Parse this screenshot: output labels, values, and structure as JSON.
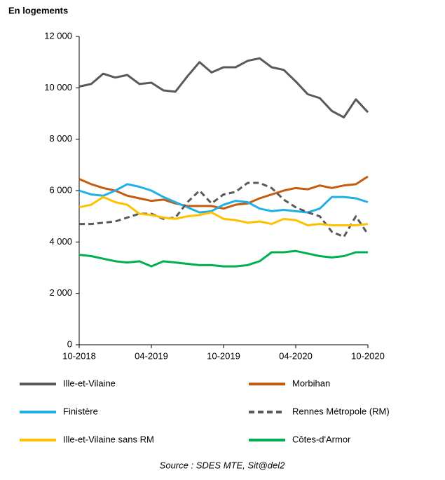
{
  "chart_data": {
    "type": "line",
    "y_label": "En logements",
    "source": "Source : SDES MTE, Sit@del2",
    "categories": [
      "10-2018",
      null,
      null,
      null,
      null,
      null,
      "04-2019",
      null,
      null,
      null,
      null,
      null,
      "10-2019",
      null,
      null,
      null,
      null,
      null,
      "04-2020",
      null,
      null,
      null,
      null,
      null,
      "10-2020"
    ],
    "ylim": [
      0,
      12000
    ],
    "yticks": [
      0,
      {
        "value": 2000,
        "label": "2 000"
      },
      {
        "value": 4000,
        "label": "4 000"
      },
      {
        "value": 6000,
        "label": "6 000"
      },
      {
        "value": 8000,
        "label": "8 000"
      },
      {
        "value": 10000,
        "label": "10 000"
      },
      {
        "value": 12000,
        "label": "12 000"
      }
    ],
    "series": [
      {
        "name": "Ille-et-Vilaine",
        "color": "#595959",
        "values": [
          10050,
          10150,
          10550,
          10400,
          10500,
          10150,
          10200,
          9900,
          9850,
          10450,
          11000,
          10600,
          10800,
          10800,
          11050,
          11150,
          10800,
          10700,
          10250,
          9750,
          9600,
          9100,
          8850,
          9550,
          9050
        ]
      },
      {
        "name": "Morbihan",
        "color": "#c55a11",
        "values": [
          6450,
          6250,
          6100,
          6000,
          5800,
          5700,
          5600,
          5650,
          5500,
          5400,
          5400,
          5400,
          5300,
          5450,
          5500,
          5700,
          5850,
          6000,
          6100,
          6050,
          6200,
          6100,
          6200,
          6250,
          6550
        ]
      },
      {
        "name": "Finistère",
        "color": "#1fb0e8",
        "values": [
          6000,
          5850,
          5800,
          6000,
          6250,
          6150,
          6000,
          5750,
          5550,
          5350,
          5150,
          5200,
          5450,
          5600,
          5550,
          5300,
          5200,
          5250,
          5200,
          5150,
          5300,
          5750,
          5750,
          5700,
          5550
        ]
      },
      {
        "name": "Rennes Métropole (RM)",
        "color": "#595959",
        "dashed": true,
        "values": [
          4700,
          4700,
          4750,
          4800,
          4950,
          5100,
          5100,
          4900,
          4950,
          5550,
          6000,
          5500,
          5850,
          5950,
          6300,
          6300,
          6100,
          5650,
          5350,
          5150,
          5000,
          4400,
          4200,
          5000,
          4300
        ]
      },
      {
        "name": "Ille-et-Vilaine sans RM",
        "color": "#ffc000",
        "values": [
          5350,
          5450,
          5750,
          5550,
          5450,
          5100,
          5050,
          4950,
          4900,
          5000,
          5050,
          5150,
          4900,
          4850,
          4750,
          4800,
          4700,
          4900,
          4850,
          4650,
          4700,
          4650,
          4650,
          4650,
          4700
        ]
      },
      {
        "name": "Côtes-d'Armor",
        "color": "#00b050",
        "values": [
          3500,
          3450,
          3350,
          3250,
          3200,
          3250,
          3050,
          3250,
          3200,
          3150,
          3100,
          3100,
          3050,
          3050,
          3100,
          3250,
          3600,
          3600,
          3650,
          3550,
          3450,
          3400,
          3450,
          3600,
          3600
        ]
      }
    ]
  }
}
